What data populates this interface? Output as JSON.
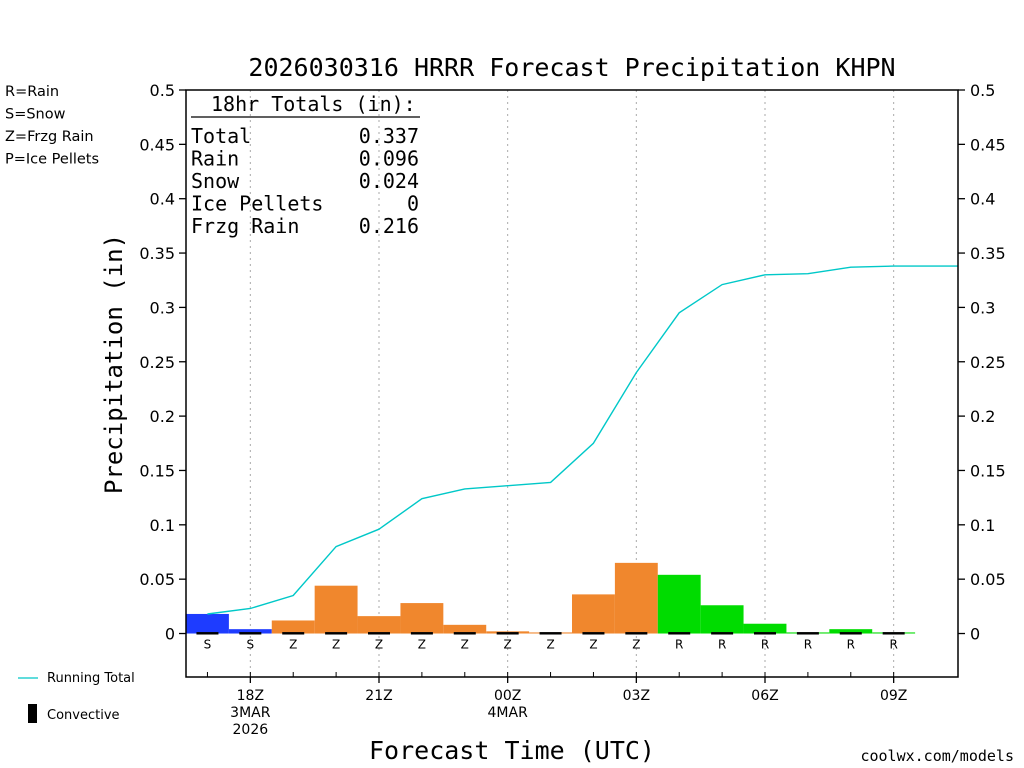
{
  "chart_data": {
    "type": "bar",
    "title": "2026030316 HRRR Forecast Precipitation KHPN",
    "xlabel": "Forecast Time (UTC)",
    "ylabel": "Precipitation (in)",
    "ylim": [
      -0.04,
      0.5
    ],
    "y_ticks": [
      0,
      0.05,
      0.1,
      0.15,
      0.2,
      0.25,
      0.3,
      0.35,
      0.4,
      0.45,
      0.5
    ],
    "y_tick_labels": [
      "0",
      "0.05",
      "0.1",
      "0.15",
      "0.2",
      "0.25",
      "0.3",
      "0.35",
      "0.4",
      "0.45",
      "0.5"
    ],
    "x_hours": [
      17,
      18,
      19,
      20,
      21,
      22,
      23,
      24,
      25,
      26,
      27,
      28,
      29,
      30,
      31,
      32,
      33
    ],
    "x_range": [
      16.5,
      34.5
    ],
    "x_ticks": [
      {
        "hour": 18,
        "lines": [
          "18Z",
          "3MAR",
          "2026"
        ]
      },
      {
        "hour": 21,
        "lines": [
          "21Z"
        ]
      },
      {
        "hour": 24,
        "lines": [
          "00Z",
          "4MAR"
        ]
      },
      {
        "hour": 27,
        "lines": [
          "03Z"
        ]
      },
      {
        "hour": 30,
        "lines": [
          "06Z"
        ]
      },
      {
        "hour": 33,
        "lines": [
          "09Z"
        ]
      }
    ],
    "hourly_values": [
      0.018,
      0.004,
      0.012,
      0.044,
      0.016,
      0.028,
      0.008,
      0.002,
      0.001,
      0.036,
      0.065,
      0.054,
      0.026,
      0.009,
      0.001,
      0.004,
      0.001
    ],
    "precip_types": [
      "S",
      "S",
      "Z",
      "Z",
      "Z",
      "Z",
      "Z",
      "Z",
      "Z",
      "Z",
      "Z",
      "R",
      "R",
      "R",
      "R",
      "R",
      "R"
    ],
    "convective_values": [
      0,
      0,
      0,
      0,
      0,
      0,
      0,
      0,
      0,
      0,
      0,
      0,
      0,
      0,
      0,
      0,
      0
    ],
    "running_total": {
      "name": "Running Total",
      "x": [
        17,
        18,
        19,
        20,
        21,
        22,
        23,
        24,
        25,
        26,
        27,
        28,
        29,
        30,
        31,
        32,
        33,
        34.5
      ],
      "values": [
        0.018,
        0.023,
        0.035,
        0.08,
        0.096,
        0.124,
        0.133,
        0.136,
        0.139,
        0.175,
        0.24,
        0.295,
        0.321,
        0.33,
        0.331,
        0.337,
        0.338,
        0.338
      ]
    },
    "colors": {
      "S": "#1e3cff",
      "Z": "#f0872d",
      "R": "#00dc00",
      "P": "#f0288c",
      "running_total": "#00c8c8",
      "convective": "#000000"
    },
    "totals": {
      "header": "18hr Totals (in):",
      "rows": [
        {
          "label": "Total",
          "value": "0.337"
        },
        {
          "label": "Rain",
          "value": "0.096"
        },
        {
          "label": "Snow",
          "value": "0.024"
        },
        {
          "label": "Ice Pellets",
          "value": "0"
        },
        {
          "label": "Frzg Rain",
          "value": "0.216"
        }
      ]
    },
    "type_legend": [
      {
        "label": "R=Rain",
        "color": "#00dc00"
      },
      {
        "label": "S=Snow",
        "color": "#1e3cff"
      },
      {
        "label": "Z=Frzg Rain",
        "color": "#f0872d"
      },
      {
        "label": "P=Ice Pellets",
        "color": "#f0288c"
      }
    ],
    "bottom_legend": {
      "running_total": "Running Total",
      "convective": "Convective"
    },
    "credit": "coolwx.com/models",
    "credit_color": "#dc1e1e"
  }
}
